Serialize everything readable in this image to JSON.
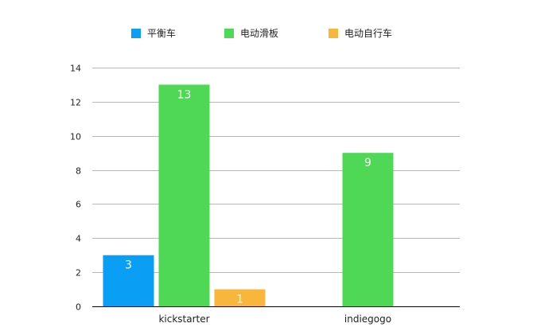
{
  "chart_data": {
    "type": "bar",
    "categories": [
      "kickstarter",
      "indiegogo"
    ],
    "series": [
      {
        "name": "平衡车",
        "color": "#0a9ff5",
        "values": [
          3,
          0
        ]
      },
      {
        "name": "电动滑板",
        "color": "#4fd856",
        "values": [
          13,
          9
        ]
      },
      {
        "name": "电动自行车",
        "color": "#f8b63c",
        "values": [
          1,
          0
        ]
      }
    ],
    "ylim": [
      0,
      14
    ],
    "yticks": [
      0,
      2,
      4,
      6,
      8,
      10,
      12,
      14
    ],
    "grid": true,
    "legend_position": "top",
    "data_labels": true
  }
}
